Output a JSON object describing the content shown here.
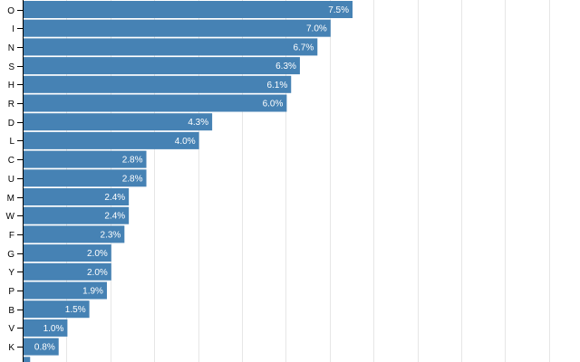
{
  "chart_data": {
    "type": "bar",
    "orientation": "horizontal",
    "title": "",
    "xlabel": "",
    "ylabel": "",
    "xlim": [
      0,
      12.5
    ],
    "grid": true,
    "color": "#4682b4",
    "categories": [
      "O",
      "I",
      "N",
      "S",
      "H",
      "R",
      "D",
      "L",
      "C",
      "U",
      "M",
      "W",
      "F",
      "G",
      "Y",
      "P",
      "B",
      "V",
      "K",
      ""
    ],
    "values": [
      7.5,
      7.0,
      6.7,
      6.3,
      6.1,
      6.0,
      4.3,
      4.0,
      2.8,
      2.8,
      2.4,
      2.4,
      2.3,
      2.0,
      2.0,
      1.9,
      1.5,
      1.0,
      0.8,
      0.15
    ],
    "value_labels": [
      "7.5%",
      "7.0%",
      "6.7%",
      "6.3%",
      "6.1%",
      "6.0%",
      "4.3%",
      "4.0%",
      "2.8%",
      "2.8%",
      "2.4%",
      "2.4%",
      "2.3%",
      "2.0%",
      "2.0%",
      "1.9%",
      "1.5%",
      "1.0%",
      "0.8%",
      ""
    ]
  }
}
